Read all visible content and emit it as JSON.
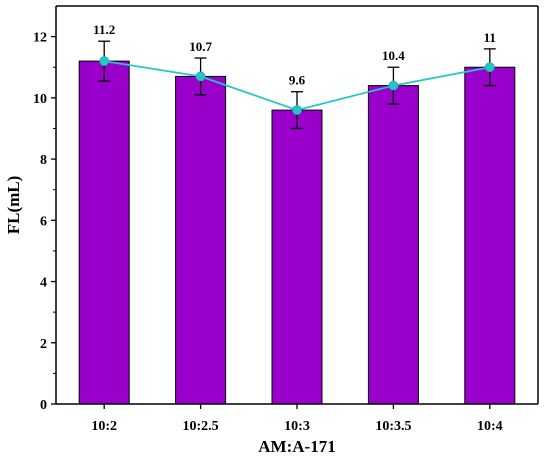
{
  "chart_data": {
    "type": "bar",
    "categories": [
      "10:2",
      "10:2.5",
      "10:3",
      "10:3.5",
      "10:4"
    ],
    "values": [
      11.2,
      10.7,
      9.6,
      10.4,
      11.0
    ],
    "errors": [
      0.65,
      0.6,
      0.6,
      0.6,
      0.6
    ],
    "data_labels": [
      "11.2",
      "10.7",
      "9.6",
      "10.4",
      "11"
    ],
    "line_overlay": true,
    "xlabel": "AM:A-171",
    "ylabel": "FL(mL)",
    "ylim": [
      0,
      13
    ],
    "yticks": [
      0,
      2,
      4,
      6,
      8,
      10,
      12
    ],
    "grid": false,
    "colors": {
      "bar_fill": "#9900cc",
      "bar_stroke": "#000000",
      "line": "#22c7c7",
      "marker": "#22c7c7",
      "error_bar": "#000000"
    }
  }
}
